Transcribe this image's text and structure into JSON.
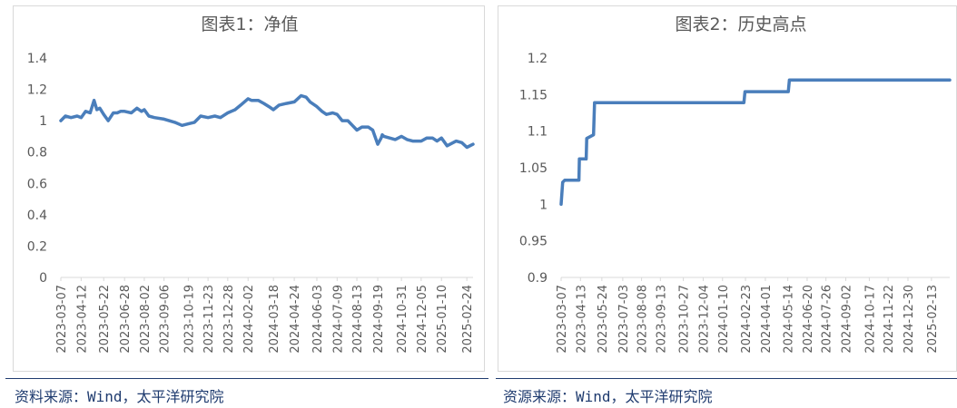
{
  "chart_data": [
    {
      "type": "line",
      "title": "图表1：净值",
      "ylim": [
        0,
        1.4
      ],
      "yticks": [
        "0",
        "0.2",
        "0.4",
        "0.6",
        "0.8",
        "1",
        "1.2",
        "1.4"
      ],
      "grid": false,
      "line_color": "#4a7ebb",
      "x_tick_labels": [
        "2023-03-07",
        "2023-04-12",
        "2023-05-22",
        "2023-06-28",
        "2023-08-02",
        "2023-09-06",
        "2023-10-19",
        "2023-11-23",
        "2023-12-28",
        "2024-02-02",
        "2024-03-18",
        "2024-04-24",
        "2024-06-03",
        "2024-07-09",
        "2024-08-13",
        "2024-09-19",
        "2024-10-31",
        "2024-12-05",
        "2025-01-10",
        "2025-02-24"
      ],
      "x_end": "2025-03-07",
      "series": [
        {
          "x": [
            "2023-03-07",
            "2023-03-15",
            "2023-03-25",
            "2023-04-05",
            "2023-04-12",
            "2023-04-20",
            "2023-04-28",
            "2023-05-05",
            "2023-05-10",
            "2023-05-15",
            "2023-05-22",
            "2023-05-30",
            "2023-06-08",
            "2023-06-15",
            "2023-06-21",
            "2023-06-28",
            "2023-07-10",
            "2023-07-20",
            "2023-07-28",
            "2023-08-02",
            "2023-08-10",
            "2023-08-20",
            "2023-09-06",
            "2023-09-15",
            "2023-09-25",
            "2023-10-08",
            "2023-10-19",
            "2023-10-30",
            "2023-11-10",
            "2023-11-23",
            "2023-12-05",
            "2023-12-15",
            "2023-12-28",
            "2024-01-10",
            "2024-01-20",
            "2024-02-02",
            "2024-02-08",
            "2024-02-20",
            "2024-03-01",
            "2024-03-10",
            "2024-03-18",
            "2024-03-28",
            "2024-04-10",
            "2024-04-24",
            "2024-05-06",
            "2024-05-15",
            "2024-05-22",
            "2024-06-03",
            "2024-06-12",
            "2024-06-20",
            "2024-07-01",
            "2024-07-09",
            "2024-07-18",
            "2024-07-28",
            "2024-08-05",
            "2024-08-13",
            "2024-08-22",
            "2024-09-02",
            "2024-09-10",
            "2024-09-19",
            "2024-09-25",
            "2024-09-27",
            "2024-09-30",
            "2024-10-10",
            "2024-10-20",
            "2024-10-31",
            "2024-11-10",
            "2024-11-20",
            "2024-12-05",
            "2024-12-15",
            "2024-12-25",
            "2025-01-02",
            "2025-01-10",
            "2025-01-20",
            "2025-02-05",
            "2025-02-15",
            "2025-02-24",
            "2025-03-07"
          ],
          "values": [
            1.0,
            1.03,
            1.02,
            1.03,
            1.02,
            1.06,
            1.05,
            1.13,
            1.07,
            1.08,
            1.04,
            1.0,
            1.05,
            1.05,
            1.06,
            1.06,
            1.05,
            1.08,
            1.06,
            1.07,
            1.03,
            1.02,
            1.01,
            1.0,
            0.99,
            0.97,
            0.98,
            0.99,
            1.03,
            1.02,
            1.03,
            1.02,
            1.05,
            1.07,
            1.1,
            1.14,
            1.13,
            1.13,
            1.11,
            1.09,
            1.07,
            1.1,
            1.11,
            1.12,
            1.16,
            1.15,
            1.12,
            1.09,
            1.06,
            1.04,
            1.05,
            1.04,
            1.0,
            1.0,
            0.97,
            0.94,
            0.96,
            0.96,
            0.94,
            0.85,
            0.89,
            0.91,
            0.9,
            0.89,
            0.88,
            0.9,
            0.88,
            0.87,
            0.87,
            0.89,
            0.89,
            0.87,
            0.89,
            0.84,
            0.87,
            0.86,
            0.83,
            0.85
          ]
        }
      ]
    },
    {
      "type": "line",
      "title": "图表2：历史高点",
      "ylim": [
        0.9,
        1.2
      ],
      "yticks": [
        "0.9",
        "0.95",
        "1",
        "1.05",
        "1.1",
        "1.15",
        "1.2"
      ],
      "grid": false,
      "line_color": "#4a7ebb",
      "x_tick_labels": [
        "2023-03-07",
        "2023-04-13",
        "2023-05-24",
        "2023-07-03",
        "2023-08-08",
        "2023-09-13",
        "2023-10-27",
        "2023-12-04",
        "2024-01-10",
        "2024-02-23",
        "2024-04-01",
        "2024-05-14",
        "2024-06-20",
        "2024-07-26",
        "2024-09-02",
        "2024-10-17",
        "2024-11-22",
        "2024-12-30",
        "2025-02-13"
      ],
      "x_end": "2025-03-20",
      "series": [
        {
          "x": [
            "2023-03-07",
            "2023-03-10",
            "2023-03-14",
            "2023-04-10",
            "2023-04-11",
            "2023-04-24",
            "2023-04-25",
            "2023-05-08",
            "2023-05-10",
            "2024-02-20",
            "2024-02-22",
            "2024-05-15",
            "2024-05-17",
            "2025-03-20"
          ],
          "values": [
            1.0,
            1.03,
            1.033,
            1.033,
            1.062,
            1.062,
            1.09,
            1.095,
            1.139,
            1.139,
            1.154,
            1.154,
            1.17,
            1.17
          ]
        }
      ]
    }
  ],
  "sources": [
    "资料来源：Wind，太平洋研究院",
    "资源来源：Wind，太平洋研究院"
  ]
}
